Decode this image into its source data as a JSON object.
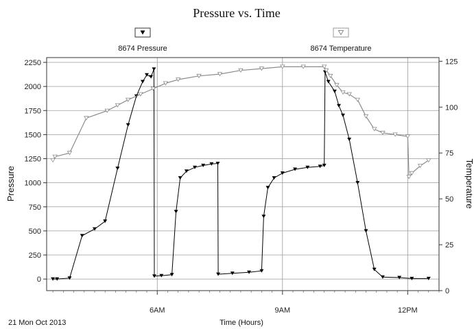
{
  "chart_data": {
    "type": "line",
    "title": "Pressure vs. Time",
    "xlabel": "Time (Hours)",
    "ylabel_left": "Pressure",
    "ylabel_right": "Temperature",
    "date_label": "21 Mon Oct 2013",
    "x_axis_unit": "hours",
    "xlim": [
      3.35,
      12.75
    ],
    "x_ticks": [
      {
        "value": 6,
        "label": "6AM"
      },
      {
        "value": 9,
        "label": "9AM"
      },
      {
        "value": 12,
        "label": "12PM"
      }
    ],
    "ylim_left": [
      -120,
      2300
    ],
    "y_ticks_left": [
      0,
      250,
      500,
      750,
      1000,
      1250,
      1500,
      1750,
      2000,
      2250
    ],
    "ylim_right": [
      0,
      127
    ],
    "y_ticks_right": [
      0,
      25,
      50,
      75,
      100,
      125
    ],
    "grid": true,
    "legend_placement": "top",
    "series": [
      {
        "name": "8674 Pressure",
        "axis": "left",
        "color": "#000000",
        "marker": "filled-down-triangle",
        "points": [
          [
            3.5,
            0
          ],
          [
            3.6,
            0
          ],
          [
            3.9,
            10
          ],
          [
            4.2,
            450
          ],
          [
            4.5,
            520
          ],
          [
            4.75,
            600
          ],
          [
            5.05,
            1150
          ],
          [
            5.3,
            1600
          ],
          [
            5.5,
            1900
          ],
          [
            5.65,
            2050
          ],
          [
            5.75,
            2120
          ],
          [
            5.85,
            2100
          ],
          [
            5.92,
            2180
          ],
          [
            5.93,
            30
          ],
          [
            6.1,
            35
          ],
          [
            6.35,
            45
          ],
          [
            6.45,
            700
          ],
          [
            6.55,
            1050
          ],
          [
            6.7,
            1120
          ],
          [
            6.9,
            1160
          ],
          [
            7.1,
            1180
          ],
          [
            7.3,
            1195
          ],
          [
            7.45,
            1200
          ],
          [
            7.46,
            50
          ],
          [
            7.8,
            60
          ],
          [
            8.2,
            70
          ],
          [
            8.5,
            85
          ],
          [
            8.55,
            650
          ],
          [
            8.65,
            950
          ],
          [
            8.8,
            1050
          ],
          [
            9.0,
            1100
          ],
          [
            9.3,
            1140
          ],
          [
            9.6,
            1160
          ],
          [
            9.9,
            1170
          ],
          [
            10.0,
            1180
          ],
          [
            10.02,
            2150
          ],
          [
            10.1,
            2050
          ],
          [
            10.25,
            1950
          ],
          [
            10.35,
            1800
          ],
          [
            10.45,
            1700
          ],
          [
            10.6,
            1450
          ],
          [
            10.8,
            1000
          ],
          [
            11.0,
            500
          ],
          [
            11.2,
            100
          ],
          [
            11.4,
            20
          ],
          [
            11.8,
            15
          ],
          [
            12.1,
            5
          ],
          [
            12.5,
            5
          ]
        ]
      },
      {
        "name": "8674 Temperature",
        "axis": "right",
        "color": "#8a8a8a",
        "marker": "open-down-triangle",
        "points": [
          [
            3.5,
            71
          ],
          [
            3.55,
            73
          ],
          [
            3.9,
            75
          ],
          [
            4.3,
            94
          ],
          [
            4.8,
            98
          ],
          [
            5.05,
            101
          ],
          [
            5.3,
            104
          ],
          [
            5.6,
            107
          ],
          [
            5.9,
            110
          ],
          [
            6.2,
            113
          ],
          [
            6.5,
            115
          ],
          [
            7.0,
            117
          ],
          [
            7.5,
            118
          ],
          [
            8.0,
            120
          ],
          [
            8.5,
            121
          ],
          [
            9.0,
            122
          ],
          [
            9.5,
            122
          ],
          [
            10.0,
            122
          ],
          [
            10.05,
            120
          ],
          [
            10.15,
            117
          ],
          [
            10.3,
            112
          ],
          [
            10.45,
            108
          ],
          [
            10.6,
            107
          ],
          [
            10.8,
            104
          ],
          [
            11.0,
            95
          ],
          [
            11.2,
            88
          ],
          [
            11.4,
            86
          ],
          [
            11.7,
            85
          ],
          [
            12.0,
            84
          ],
          [
            12.03,
            62
          ],
          [
            12.1,
            64
          ],
          [
            12.3,
            68
          ],
          [
            12.5,
            71
          ]
        ]
      }
    ]
  }
}
